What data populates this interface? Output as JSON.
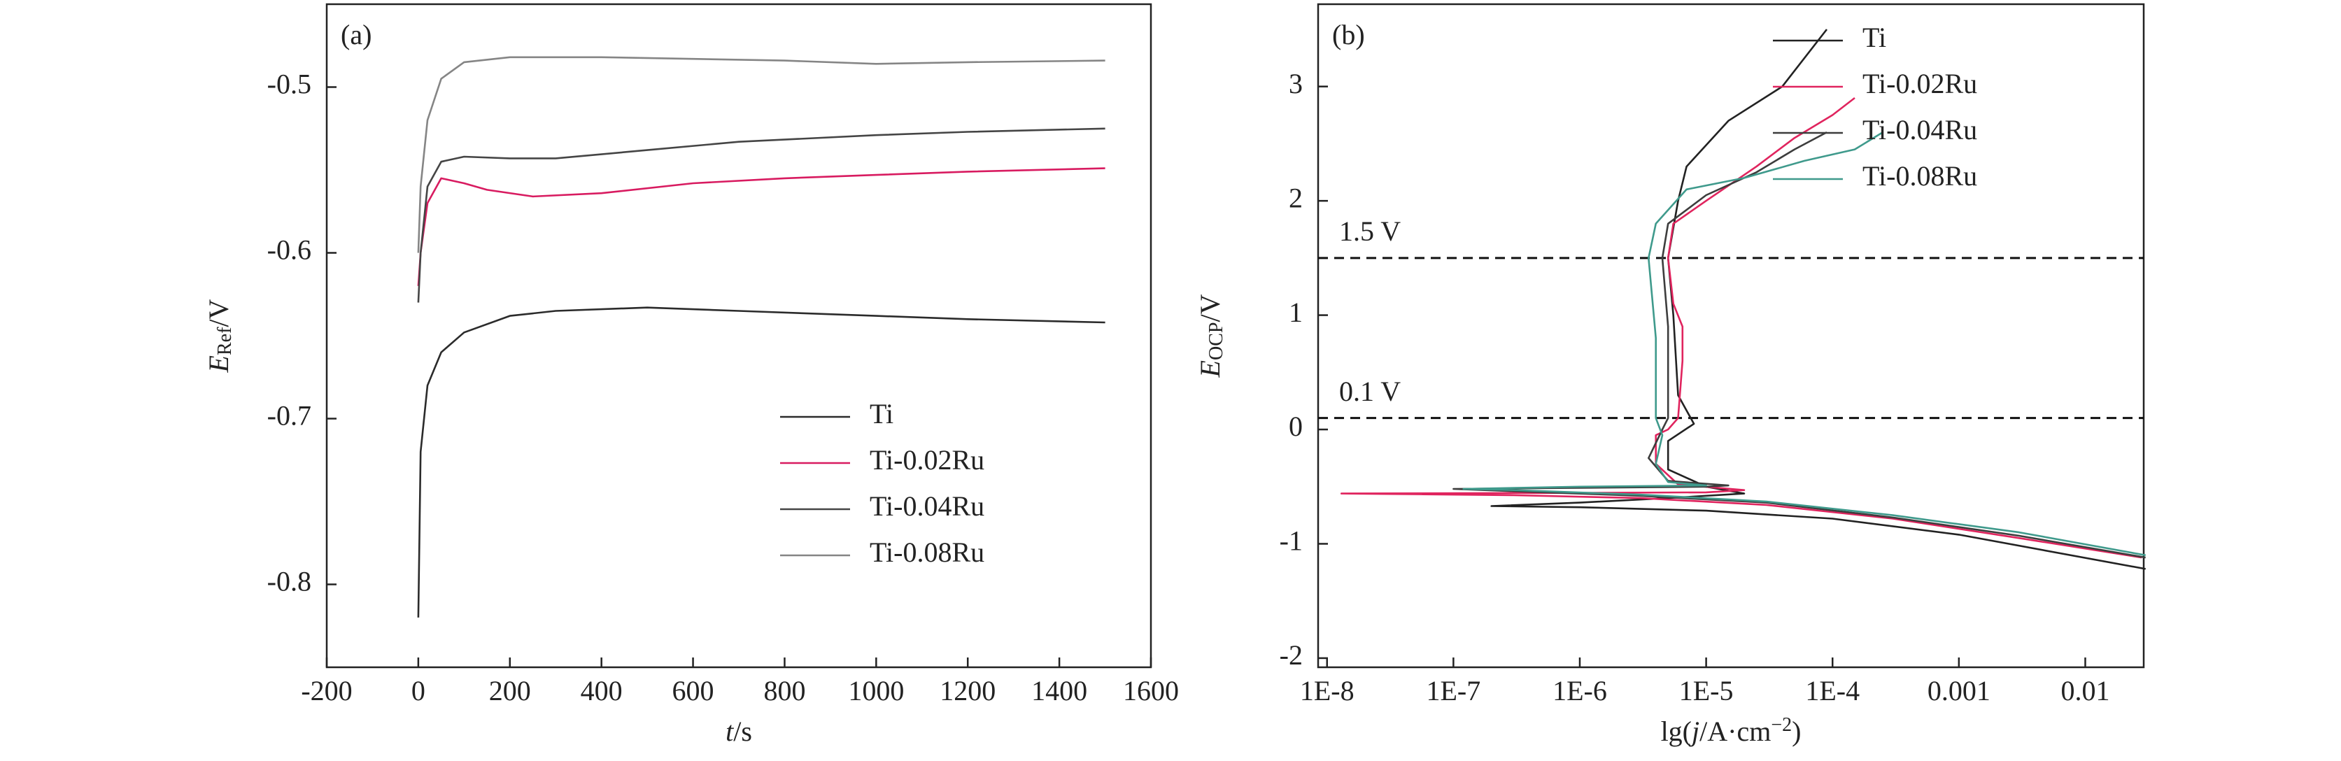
{
  "chart_data": [
    {
      "type": "line",
      "title": "(a)",
      "xlabel": {
        "symbol": "t",
        "unit": "/s"
      },
      "ylabel": {
        "symbol": "E",
        "subscript": "Ref",
        "unit": "/V"
      },
      "xlim": [
        -200,
        1600
      ],
      "xticks": [
        -200,
        0,
        200,
        400,
        600,
        800,
        1000,
        1200,
        1400,
        1600
      ],
      "ylim": [
        -0.85,
        -0.45
      ],
      "yticks": [
        -0.8,
        -0.7,
        -0.6,
        -0.5
      ],
      "legend": "lower right",
      "series": [
        {
          "name": "Ti",
          "color": "#2b2b2b",
          "x": [
            0,
            5,
            20,
            50,
            100,
            200,
            300,
            500,
            700,
            1000,
            1200,
            1500
          ],
          "values": [
            -0.82,
            -0.72,
            -0.68,
            -0.66,
            -0.648,
            -0.638,
            -0.635,
            -0.633,
            -0.635,
            -0.638,
            -0.64,
            -0.642
          ]
        },
        {
          "name": "Ti-0.02Ru",
          "color": "#d81b60",
          "x": [
            0,
            5,
            20,
            50,
            100,
            150,
            250,
            400,
            600,
            800,
            1000,
            1200,
            1500
          ],
          "values": [
            -0.62,
            -0.6,
            -0.57,
            -0.555,
            -0.558,
            -0.562,
            -0.566,
            -0.564,
            -0.558,
            -0.555,
            -0.553,
            -0.551,
            -0.549
          ]
        },
        {
          "name": "Ti-0.04Ru",
          "color": "#454545",
          "x": [
            0,
            5,
            20,
            50,
            100,
            200,
            300,
            500,
            700,
            1000,
            1200,
            1500
          ],
          "values": [
            -0.63,
            -0.6,
            -0.56,
            -0.545,
            -0.542,
            -0.543,
            -0.543,
            -0.538,
            -0.533,
            -0.529,
            -0.527,
            -0.525
          ]
        },
        {
          "name": "Ti-0.08Ru",
          "color": "#858585",
          "x": [
            0,
            5,
            20,
            50,
            100,
            200,
            400,
            600,
            800,
            1000,
            1200,
            1500
          ],
          "values": [
            -0.6,
            -0.56,
            -0.52,
            -0.495,
            -0.485,
            -0.482,
            -0.482,
            -0.483,
            -0.484,
            -0.486,
            -0.485,
            -0.484
          ]
        }
      ]
    },
    {
      "type": "line",
      "title": "(b)",
      "xscale": "log",
      "xlabel": {
        "prefix": "lg(",
        "symbol": "j",
        "unit": "/A·cm",
        "superscript": "−2",
        "suffix": ")"
      },
      "ylabel": {
        "symbol": "E",
        "subscript": "OCP",
        "unit": "/V"
      },
      "xlim": [
        8.5e-09,
        0.029
      ],
      "xticks": [
        {
          "value": 1e-08,
          "label": "1E-8"
        },
        {
          "value": 1e-07,
          "label": "1E-7"
        },
        {
          "value": 1e-06,
          "label": "1E-6"
        },
        {
          "value": 1e-05,
          "label": "1E-5"
        },
        {
          "value": 0.0001,
          "label": "1E-4"
        },
        0.001,
        0.01
      ],
      "ylim": [
        -2.08,
        3.72
      ],
      "yticks": [
        -2,
        -1,
        0,
        1,
        2,
        3
      ],
      "reference_lines": [
        {
          "value": 1.5,
          "label": "1.5 V"
        },
        {
          "value": 0.1,
          "label": "0.1 V"
        }
      ],
      "legend": "upper right",
      "series": [
        {
          "name": "Ti",
          "color": "#222222",
          "x": [
            0.03,
            0.001,
            0.0001,
            1e-05,
            1e-06,
            2e-07,
            1e-06,
            5e-06,
            2e-05,
            1e-05,
            5e-06,
            5e-06,
            8e-06,
            6e-06,
            5.5e-06,
            5e-06,
            6e-06,
            7e-06,
            1.5e-05,
            4e-05,
            9e-05
          ],
          "values": [
            -1.22,
            -0.92,
            -0.78,
            -0.71,
            -0.68,
            -0.67,
            -0.64,
            -0.6,
            -0.56,
            -0.5,
            -0.35,
            -0.1,
            0.05,
            0.3,
            1.0,
            1.5,
            2.0,
            2.3,
            2.7,
            3.0,
            3.5
          ]
        },
        {
          "name": "Ti-0.02Ru",
          "color": "#e0245e",
          "x": [
            0.028,
            0.003,
            0.0003,
            3e-05,
            3e-06,
            3e-07,
            1.3e-08,
            1e-06,
            1e-05,
            2e-05,
            6e-06,
            4e-06,
            4e-06,
            5e-06,
            6e-06,
            6.5e-06,
            6.5e-06,
            5.5e-06,
            5e-06,
            5.5e-06,
            1e-05,
            2.5e-05,
            5e-05,
            0.0001,
            0.00015
          ],
          "values": [
            -1.12,
            -0.95,
            -0.78,
            -0.66,
            -0.6,
            -0.575,
            -0.56,
            -0.555,
            -0.55,
            -0.53,
            -0.48,
            -0.3,
            -0.05,
            0.0,
            0.1,
            0.6,
            0.9,
            1.1,
            1.5,
            1.8,
            2.0,
            2.3,
            2.55,
            2.75,
            2.9
          ]
        },
        {
          "name": "Ti-0.04Ru",
          "color": "#3d3d3d",
          "x": [
            0.03,
            0.003,
            0.0003,
            3e-05,
            3e-06,
            3e-07,
            1e-07,
            1e-06,
            1e-05,
            1.5e-05,
            5e-06,
            3.5e-06,
            4.5e-06,
            5e-06,
            5e-06,
            4.5e-06,
            5e-06,
            1e-05,
            2.5e-05,
            5e-05,
            9e-05
          ],
          "values": [
            -1.12,
            -0.93,
            -0.77,
            -0.64,
            -0.58,
            -0.54,
            -0.52,
            -0.51,
            -0.5,
            -0.49,
            -0.45,
            -0.25,
            0.0,
            0.1,
            0.9,
            1.5,
            1.8,
            2.05,
            2.25,
            2.45,
            2.6
          ]
        },
        {
          "name": "Ti-0.08Ru",
          "color": "#3f9a8c",
          "x": [
            0.03,
            0.003,
            0.0003,
            3e-05,
            3e-06,
            3e-07,
            1.2e-07,
            1e-06,
            1e-05,
            5e-06,
            4e-06,
            4.5e-06,
            4e-06,
            4e-06,
            3.5e-06,
            4e-06,
            7e-06,
            2e-05,
            6e-05,
            0.00015,
            0.00025
          ],
          "values": [
            -1.1,
            -0.9,
            -0.75,
            -0.63,
            -0.57,
            -0.53,
            -0.52,
            -0.5,
            -0.49,
            -0.46,
            -0.3,
            -0.05,
            0.1,
            0.8,
            1.5,
            1.8,
            2.1,
            2.2,
            2.35,
            2.45,
            2.6
          ]
        }
      ]
    }
  ]
}
